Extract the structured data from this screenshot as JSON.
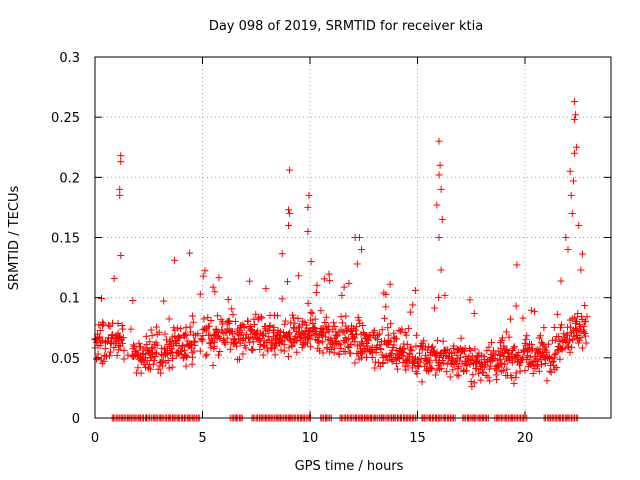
{
  "chart_data": {
    "type": "scatter",
    "title": "Day 098 of 2019, SRMTID for receiver ktia",
    "xlabel": "GPS time / hours",
    "ylabel": "SRMTID / TECUs",
    "xlim": [
      0,
      24
    ],
    "ylim": [
      0,
      0.3
    ],
    "xticks": [
      "0",
      "5",
      "10",
      "15",
      "20"
    ],
    "yticks": [
      "0",
      "0.05",
      "0.1",
      "0.15",
      "0.2",
      "0.25",
      "0.3"
    ],
    "grid": true,
    "marker": "+",
    "color": "#ff0000",
    "series": [
      {
        "name": "SRMTID",
        "profile_hours": [
          0.0,
          1.0,
          2.0,
          3.0,
          4.0,
          5.0,
          6.0,
          7.0,
          8.0,
          9.0,
          10.0,
          11.0,
          12.0,
          13.0,
          14.0,
          15.0,
          16.0,
          17.0,
          18.0,
          19.0,
          20.0,
          21.0,
          22.0,
          22.9
        ],
        "profile_median": [
          0.06,
          0.065,
          0.05,
          0.055,
          0.06,
          0.065,
          0.07,
          0.068,
          0.07,
          0.065,
          0.07,
          0.068,
          0.065,
          0.06,
          0.058,
          0.05,
          0.05,
          0.048,
          0.045,
          0.05,
          0.052,
          0.05,
          0.07,
          0.075
        ],
        "peaks": [
          {
            "x": 1.2,
            "y": 0.218
          },
          {
            "x": 1.2,
            "y": 0.213
          },
          {
            "x": 1.15,
            "y": 0.19
          },
          {
            "x": 1.15,
            "y": 0.185
          },
          {
            "x": 1.2,
            "y": 0.135
          },
          {
            "x": 4.4,
            "y": 0.137
          },
          {
            "x": 9.05,
            "y": 0.206
          },
          {
            "x": 9.0,
            "y": 0.173
          },
          {
            "x": 9.05,
            "y": 0.17
          },
          {
            "x": 9.0,
            "y": 0.16
          },
          {
            "x": 9.95,
            "y": 0.185
          },
          {
            "x": 9.9,
            "y": 0.175
          },
          {
            "x": 9.9,
            "y": 0.155
          },
          {
            "x": 10.05,
            "y": 0.13
          },
          {
            "x": 12.3,
            "y": 0.15
          },
          {
            "x": 12.1,
            "y": 0.15
          },
          {
            "x": 12.4,
            "y": 0.14
          },
          {
            "x": 12.2,
            "y": 0.128
          },
          {
            "x": 16.0,
            "y": 0.23
          },
          {
            "x": 16.05,
            "y": 0.21
          },
          {
            "x": 16.0,
            "y": 0.202
          },
          {
            "x": 16.1,
            "y": 0.19
          },
          {
            "x": 15.9,
            "y": 0.177
          },
          {
            "x": 16.15,
            "y": 0.165
          },
          {
            "x": 16.0,
            "y": 0.15
          },
          {
            "x": 16.1,
            "y": 0.123
          },
          {
            "x": 22.3,
            "y": 0.263
          },
          {
            "x": 22.35,
            "y": 0.252
          },
          {
            "x": 22.3,
            "y": 0.248
          },
          {
            "x": 22.4,
            "y": 0.225
          },
          {
            "x": 22.3,
            "y": 0.22
          },
          {
            "x": 22.1,
            "y": 0.205
          },
          {
            "x": 22.25,
            "y": 0.197
          },
          {
            "x": 22.15,
            "y": 0.185
          },
          {
            "x": 22.2,
            "y": 0.17
          },
          {
            "x": 22.5,
            "y": 0.16
          },
          {
            "x": 21.9,
            "y": 0.15
          },
          {
            "x": 22.0,
            "y": 0.14
          },
          {
            "x": 22.6,
            "y": 0.123
          }
        ],
        "zero_band_segments": [
          [
            0.8,
            4.9
          ],
          [
            6.3,
            6.9
          ],
          [
            7.3,
            10.1
          ],
          [
            10.5,
            11.0
          ],
          [
            11.4,
            15.0
          ],
          [
            15.2,
            16.8
          ],
          [
            17.1,
            18.3
          ],
          [
            18.6,
            20.1
          ],
          [
            20.9,
            22.5
          ]
        ]
      }
    ]
  }
}
